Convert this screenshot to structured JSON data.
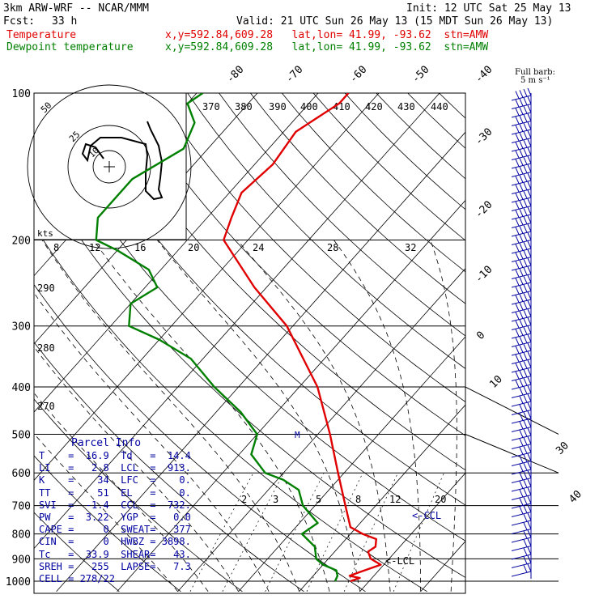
{
  "header": {
    "model": "3km ARW-WRF -- NCAR/MMM",
    "init": "Init: 12 UTC Sat 25 May 13",
    "fcst_label": "Fcst:",
    "fcst_value": "33 h",
    "valid": "Valid: 21 UTC Sun 26 May 13 (15 MDT Sun 26 May 13)",
    "temp_label": "Temperature",
    "dew_label": "Dewpoint temperature",
    "loc_temp": "x,y=592.84,609.28   lat,lon= 41.99, -93.62  stn=AMW",
    "loc_dew": "x,y=592.84,609.28   lat,lon= 41.99, -93.62  stn=AMW"
  },
  "colors": {
    "temperature": "#e00000",
    "dewpoint": "#008000",
    "table": "#0000a0",
    "barbs": "#0000a0"
  },
  "barb_legend": {
    "line1": "Full barb:",
    "line2": "5 m s⁻¹"
  },
  "parcel": {
    "title": "Parcel Info",
    "rows": [
      {
        "k1": "T",
        "v1": "16.9",
        "k2": "Td",
        "v2": "14.4"
      },
      {
        "k1": "LI",
        "v1": "2.8",
        "k2": "LCL",
        "v2": "913."
      },
      {
        "k1": "K",
        "v1": "34",
        "k2": "LFC",
        "v2": "0."
      },
      {
        "k1": "TT",
        "v1": "51",
        "k2": "EL",
        "v2": "0."
      },
      {
        "k1": "SVI",
        "v1": "-1.4",
        "k2": "CCL",
        "v2": "732."
      },
      {
        "k1": "PW",
        "v1": "3.22",
        "k2": "YGP",
        "v2": "0.0"
      },
      {
        "k1": "CAPE",
        "v1": "0",
        "k2": "SWEAT",
        "v2": "377"
      },
      {
        "k1": "CIN",
        "v1": "0",
        "k2": "HWBZ",
        "v2": "3898."
      },
      {
        "k1": "Tc",
        "v1": "33.9",
        "k2": "SHEAR",
        "v2": "43."
      },
      {
        "k1": "SREH",
        "v1": "255",
        "k2": "LAPSE",
        "v2": "7.3"
      }
    ],
    "cell": "CELL = 278/22"
  },
  "chart_data": {
    "type": "line",
    "subtype": "skew-T log-P sounding",
    "pressure_levels": [
      100,
      200,
      300,
      400,
      500,
      600,
      700,
      800,
      900,
      1000
    ],
    "pressure_labels": [
      "100",
      "200",
      "300",
      "400",
      "500",
      "600",
      "700",
      "800",
      "900",
      "1000"
    ],
    "isotherm_labels_top": [
      "-80",
      "-70",
      "-60",
      "-50",
      "-40"
    ],
    "isotherm_labels_right": [
      "-30",
      "-20",
      "-10",
      "0",
      "10",
      "30",
      "40"
    ],
    "theta_labels_top": [
      "370",
      "380",
      "390",
      "400",
      "410",
      "420",
      "430",
      "440"
    ],
    "theta_labels_left": [
      "290",
      "280",
      "270"
    ],
    "mixing_ratio_labels_200": [
      "8",
      "12",
      "16",
      "20",
      "24",
      "28",
      "32"
    ],
    "mixing_ratio_labels_700": [
      "2",
      "3",
      "5",
      "8",
      "12",
      "20"
    ],
    "hodograph": {
      "unit_label": "kts",
      "ring_labels": [
        "50",
        "25",
        "10"
      ]
    },
    "annotations": {
      "ccl": "<-CCL",
      "lcl": "<-LCL",
      "m_marker": "M"
    },
    "series": [
      {
        "name": "Temperature",
        "points": [
          [
            1000,
            16.9
          ],
          [
            985,
            18
          ],
          [
            975,
            16
          ],
          [
            960,
            17
          ],
          [
            925,
            19.5
          ],
          [
            900,
            17
          ],
          [
            870,
            15.5
          ],
          [
            850,
            16
          ],
          [
            820,
            15
          ],
          [
            800,
            12
          ],
          [
            775,
            9
          ],
          [
            700,
            5
          ],
          [
            600,
            -1
          ],
          [
            500,
            -8
          ],
          [
            400,
            -17
          ],
          [
            300,
            -31
          ],
          [
            250,
            -42
          ],
          [
            200,
            -54
          ],
          [
            180,
            -56
          ],
          [
            160,
            -58
          ],
          [
            140,
            -57
          ],
          [
            120,
            -58
          ],
          [
            105,
            -55
          ],
          [
            100,
            -55
          ]
        ]
      },
      {
        "name": "Dewpoint temperature",
        "points": [
          [
            1000,
            14.4
          ],
          [
            975,
            14
          ],
          [
            950,
            13
          ],
          [
            925,
            10
          ],
          [
            900,
            8
          ],
          [
            850,
            6
          ],
          [
            800,
            2
          ],
          [
            760,
            3
          ],
          [
            700,
            -2
          ],
          [
            650,
            -5
          ],
          [
            620,
            -9
          ],
          [
            600,
            -13
          ],
          [
            550,
            -18
          ],
          [
            500,
            -20
          ],
          [
            450,
            -26
          ],
          [
            400,
            -34
          ],
          [
            350,
            -42
          ],
          [
            320,
            -50
          ],
          [
            300,
            -57
          ],
          [
            270,
            -60
          ],
          [
            250,
            -58
          ],
          [
            230,
            -62
          ],
          [
            210,
            -70
          ],
          [
            200,
            -75
          ],
          [
            180,
            -78
          ],
          [
            150,
            -78
          ],
          [
            130,
            -74
          ],
          [
            115,
            -76
          ],
          [
            105,
            -80
          ],
          [
            100,
            -79
          ]
        ]
      }
    ]
  }
}
